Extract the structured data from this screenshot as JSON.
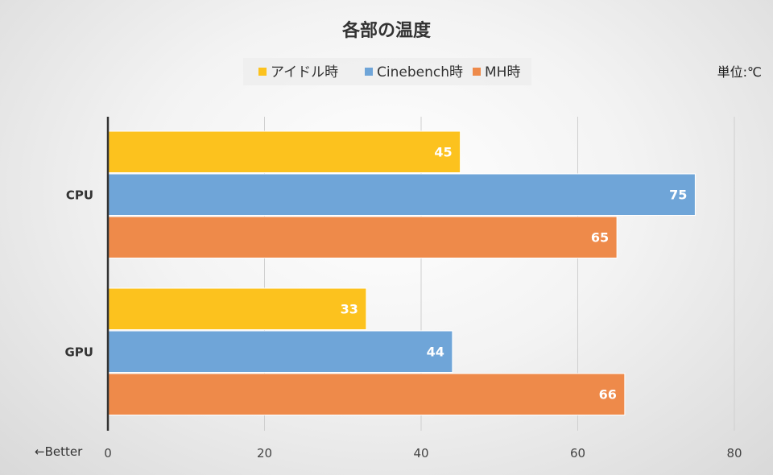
{
  "chart_data": {
    "type": "bar",
    "orientation": "horizontal",
    "title": "各部の温度",
    "unit_label": "単位:℃",
    "better_label": "←Better",
    "categories": [
      "CPU",
      "GPU"
    ],
    "series": [
      {
        "name": "アイドル時",
        "color": "#FCC21E",
        "values": [
          45,
          33
        ]
      },
      {
        "name": "Cinebench時",
        "color": "#6FA5D8",
        "values": [
          75,
          44
        ]
      },
      {
        "name": "MH時",
        "color": "#EE8A4A",
        "values": [
          65,
          66
        ]
      }
    ],
    "xlim": [
      0,
      80
    ],
    "xticks": [
      "0",
      "20",
      "40",
      "60",
      "80"
    ],
    "grid": true,
    "legend_position": "top-center"
  }
}
